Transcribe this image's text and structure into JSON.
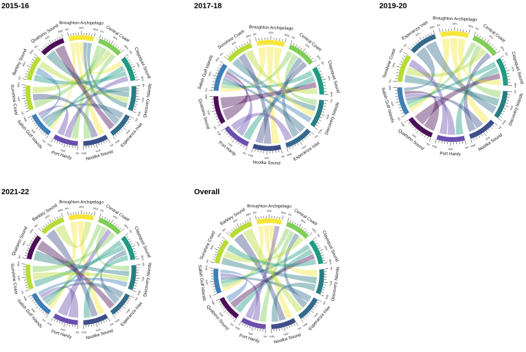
{
  "figure": {
    "panel_labels": [
      "2015-16",
      "2017-18",
      "2019-20",
      "2021-22",
      "Overall"
    ]
  },
  "colors": {
    "Broughton Archipelago": "#f6e63a",
    "Central Coast": "#7fce55",
    "Clayoquot Sound": "#1f9a83",
    "Discovery Islands": "#287d84",
    "Esperanza Inlet": "#346b8c",
    "Nootka Sound": "#3d4f89",
    "Port Hardy": "#6a4fae",
    "Salish Gulf Islands": "#3f7fb8",
    "Sunshine Coast": "#b6dc35",
    "Barkley Sound": "#b6dc35",
    "Quatsino Sound": "#4d0f57",
    "Quatsino  Sound": "#4d0f57"
  },
  "chart_data": [
    {
      "type": "chord",
      "title": "2015-16",
      "segments": [
        {
          "name": "Broughton Archipelago",
          "ticks": [
            "0%",
            "40%",
            "80%"
          ]
        },
        {
          "name": "Central Coast",
          "ticks": [
            "0%",
            "40%",
            "80%"
          ]
        },
        {
          "name": "Clayoquot Sound",
          "ticks": [
            "0%",
            "40%",
            "80%"
          ]
        },
        {
          "name": "Discovery Islands",
          "ticks": [
            "0%",
            "40%",
            "80%"
          ]
        },
        {
          "name": "Esperanza Inlet",
          "ticks": [
            "0%",
            "40%",
            "80%"
          ]
        },
        {
          "name": "Nootka Sound",
          "ticks": [
            "0%",
            "40%",
            "80%"
          ]
        },
        {
          "name": "Port Hardy",
          "ticks": [
            "0%",
            "40%",
            "80%"
          ]
        },
        {
          "name": "Salish Gulf Islands",
          "ticks": [
            "0%",
            "40%",
            "80%"
          ]
        },
        {
          "name": "Sunshine Coast",
          "ticks": [
            "0%",
            "40%",
            "80%"
          ]
        },
        {
          "name": "Barkley Sound",
          "ticks": [
            "0%",
            "40%",
            "80%"
          ]
        },
        {
          "name": "Quatsino Sound",
          "ticks": [
            "0%",
            "40%",
            "80%"
          ]
        }
      ],
      "chords": [
        [
          0,
          7
        ],
        [
          0,
          5
        ],
        [
          0,
          2
        ],
        [
          1,
          6
        ],
        [
          1,
          8
        ],
        [
          2,
          7
        ],
        [
          2,
          9
        ],
        [
          3,
          7
        ],
        [
          3,
          10
        ],
        [
          4,
          7
        ],
        [
          4,
          0
        ],
        [
          5,
          8
        ],
        [
          6,
          2
        ],
        [
          7,
          9
        ],
        [
          8,
          1
        ],
        [
          9,
          3
        ],
        [
          10,
          4
        ],
        [
          1,
          5
        ],
        [
          6,
          7
        ],
        [
          3,
          0
        ]
      ]
    },
    {
      "type": "chord",
      "title": "2017-18",
      "segments": [
        {
          "name": "Broughton Archipelago",
          "ticks": [
            "0%",
            "40%",
            "80%"
          ]
        },
        {
          "name": "Central Coast",
          "ticks": [
            "0%",
            "40%",
            "80%"
          ]
        },
        {
          "name": "Clayoquot Sound",
          "ticks": [
            "0%",
            "40%",
            "80%"
          ]
        },
        {
          "name": "Discovery Islands",
          "ticks": [
            "0%",
            "40%",
            "80%"
          ]
        },
        {
          "name": "Esperanza Inlet",
          "ticks": [
            "0%",
            "40%",
            "80%"
          ]
        },
        {
          "name": "Nootka Sound",
          "ticks": [
            "0%",
            "40%",
            "80%"
          ]
        },
        {
          "name": "Port Hardy",
          "ticks": [
            "0%",
            "40%",
            "80%"
          ]
        },
        {
          "name": "Quatsino Sound",
          "ticks": [
            "0%",
            "40%",
            "80%"
          ]
        },
        {
          "name": "Salish Gulf Islands",
          "ticks": [
            "0%",
            "40%",
            "80%"
          ]
        },
        {
          "name": "Sunshine Coast",
          "ticks": [
            "0%",
            "40%",
            "80%"
          ]
        }
      ],
      "chords": [
        [
          0,
          8
        ],
        [
          0,
          5
        ],
        [
          1,
          8
        ],
        [
          1,
          3
        ],
        [
          2,
          8
        ],
        [
          2,
          6
        ],
        [
          3,
          9
        ],
        [
          4,
          8
        ],
        [
          4,
          1
        ],
        [
          5,
          9
        ],
        [
          6,
          8
        ],
        [
          7,
          8
        ],
        [
          7,
          2
        ],
        [
          9,
          2
        ],
        [
          0,
          3
        ],
        [
          5,
          1
        ],
        [
          6,
          4
        ],
        [
          8,
          3
        ]
      ]
    },
    {
      "type": "chord",
      "title": "2019-20",
      "segments": [
        {
          "name": "Broughton Archipelago",
          "ticks": [
            "0%",
            "40%",
            "80%"
          ]
        },
        {
          "name": "Central Coast",
          "ticks": [
            "0%",
            "40%",
            "80%"
          ]
        },
        {
          "name": "Clayoquot Sound",
          "ticks": [
            "0%",
            "40%",
            "80%"
          ]
        },
        {
          "name": "Discovery Islands",
          "ticks": [
            "0%",
            "40%",
            "80%"
          ]
        },
        {
          "name": "Nootka Sound",
          "ticks": [
            "0%",
            "40%",
            "80%"
          ]
        },
        {
          "name": "Port Hardy",
          "ticks": [
            "0%",
            "40%",
            "80%"
          ]
        },
        {
          "name": "Quatsino  Sound",
          "ticks": [
            "0%",
            "40%",
            "80%"
          ]
        },
        {
          "name": "Salish Gulf Islands",
          "ticks": [
            "0%",
            "40%",
            "80%"
          ]
        },
        {
          "name": "Sunshine Coast",
          "ticks": [
            "0%",
            "40%",
            "80%"
          ]
        },
        {
          "name": "Esperanza Inlet",
          "ticks": [
            "0%",
            "40%",
            "80%"
          ]
        }
      ],
      "chords": [
        [
          0,
          7
        ],
        [
          0,
          4
        ],
        [
          1,
          7
        ],
        [
          1,
          3
        ],
        [
          2,
          7
        ],
        [
          2,
          5
        ],
        [
          3,
          8
        ],
        [
          4,
          7
        ],
        [
          5,
          7
        ],
        [
          6,
          7
        ],
        [
          6,
          2
        ],
        [
          8,
          1
        ],
        [
          9,
          7
        ],
        [
          9,
          3
        ],
        [
          0,
          2
        ],
        [
          4,
          1
        ],
        [
          5,
          8
        ]
      ]
    },
    {
      "type": "chord",
      "title": "2021-22",
      "segments": [
        {
          "name": "Broughton Archipelago",
          "ticks": [
            "0%",
            "40%",
            "80%"
          ]
        },
        {
          "name": "Central Coast",
          "ticks": [
            "0%",
            "40%",
            "80%"
          ]
        },
        {
          "name": "Clayoquot Sound",
          "ticks": [
            "0%",
            "40%",
            "80%"
          ]
        },
        {
          "name": "Discovery Islands",
          "ticks": [
            "0%",
            "40%",
            "80%"
          ]
        },
        {
          "name": "Esperanza Inlet",
          "ticks": [
            "0%",
            "40%",
            "80%"
          ]
        },
        {
          "name": "Nootka Sound",
          "ticks": [
            "0%",
            "40%",
            "80%"
          ]
        },
        {
          "name": "Port Hardy",
          "ticks": [
            "0%",
            "40%",
            "80%"
          ]
        },
        {
          "name": "Salish Gulf Islands",
          "ticks": [
            "0%",
            "40%",
            "80%"
          ]
        },
        {
          "name": "Sunshine Coast",
          "ticks": [
            "0%",
            "40%",
            "80%"
          ]
        },
        {
          "name": "Quatsino Sound",
          "ticks": [
            "0%",
            "40%",
            "80%"
          ]
        },
        {
          "name": "Barkley Sound",
          "ticks": [
            "0%",
            "40%",
            "80%"
          ]
        }
      ],
      "chords": [
        [
          0,
          7
        ],
        [
          0,
          5
        ],
        [
          1,
          7
        ],
        [
          1,
          3
        ],
        [
          2,
          7
        ],
        [
          2,
          8
        ],
        [
          3,
          9
        ],
        [
          4,
          7
        ],
        [
          4,
          2
        ],
        [
          5,
          10
        ],
        [
          6,
          7
        ],
        [
          6,
          1
        ],
        [
          8,
          3
        ],
        [
          9,
          4
        ],
        [
          10,
          0
        ],
        [
          2,
          5
        ],
        [
          7,
          3
        ],
        [
          1,
          8
        ]
      ]
    },
    {
      "type": "chord",
      "title": "Overall",
      "segments": [
        {
          "name": "Broughton Archipelago",
          "ticks": [
            "0%",
            "40%",
            "80%"
          ]
        },
        {
          "name": "Central Coast",
          "ticks": [
            "0%",
            "40%",
            "80%"
          ]
        },
        {
          "name": "Clayoquot Sound",
          "ticks": [
            "0%",
            "40%",
            "80%"
          ]
        },
        {
          "name": "Discovery Islands",
          "ticks": [
            "0%",
            "40%",
            "80%"
          ]
        },
        {
          "name": "Esperanza Inlet",
          "ticks": [
            "0%",
            "40%",
            "80%"
          ]
        },
        {
          "name": "Nootka Sound",
          "ticks": [
            "0%",
            "40%",
            "80%"
          ]
        },
        {
          "name": "Port Hardy",
          "ticks": [
            "0%",
            "40%",
            "80%"
          ]
        },
        {
          "name": "Quatsino Sound",
          "ticks": [
            "0%",
            "40%",
            "80%"
          ]
        },
        {
          "name": "Salish Gulf Islands",
          "ticks": [
            "0%",
            "40%",
            "80%"
          ]
        },
        {
          "name": "Sunshine Coast",
          "ticks": [
            "0%",
            "40%",
            "80%"
          ]
        },
        {
          "name": "Barkley Sound",
          "ticks": [
            "0%",
            "40%",
            "80%"
          ]
        }
      ],
      "chords": [
        [
          0,
          8
        ],
        [
          0,
          5
        ],
        [
          0,
          3
        ],
        [
          1,
          8
        ],
        [
          1,
          6
        ],
        [
          2,
          8
        ],
        [
          2,
          7
        ],
        [
          3,
          9
        ],
        [
          4,
          8
        ],
        [
          4,
          1
        ],
        [
          5,
          10
        ],
        [
          6,
          8
        ],
        [
          7,
          2
        ],
        [
          9,
          1
        ],
        [
          10,
          4
        ],
        [
          3,
          5
        ],
        [
          8,
          7
        ],
        [
          6,
          0
        ],
        [
          2,
          9
        ]
      ]
    }
  ]
}
